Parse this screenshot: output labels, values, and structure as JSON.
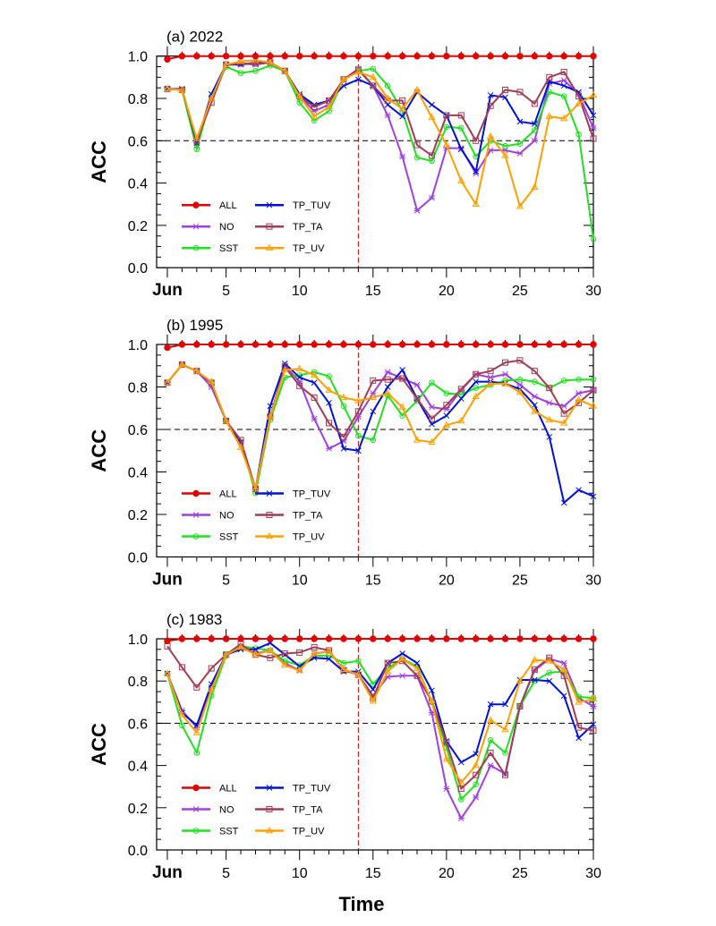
{
  "chart_data": [
    {
      "type": "line",
      "title": "(a) 2022",
      "xlabel": "",
      "ylabel": "ACC",
      "x": [
        1,
        2,
        3,
        4,
        5,
        6,
        7,
        8,
        9,
        10,
        11,
        12,
        13,
        14,
        15,
        16,
        17,
        18,
        19,
        20,
        21,
        22,
        23,
        24,
        25,
        26,
        27,
        28,
        29,
        30
      ],
      "xlim": [
        0.27,
        30
      ],
      "ylim": [
        0,
        1
      ],
      "xticks": [
        1,
        5,
        10,
        15,
        20,
        25,
        30
      ],
      "xtick_labels": [
        "Jun",
        "5",
        "10",
        "15",
        "20",
        "25",
        "30"
      ],
      "yticks": [
        0,
        0.2,
        0.4,
        0.6,
        0.8,
        1.0
      ],
      "ytick_labels": [
        "0.0",
        "0.2",
        "0.4",
        "0.6",
        "0.8",
        "1.0"
      ],
      "reference_hline": 0.6,
      "reference_vline": 14,
      "legend_placement": "bottom-left",
      "series": [
        {
          "name": "ALL",
          "values": [
            0.985,
            1,
            1,
            1,
            1,
            1,
            1,
            1,
            1,
            1,
            1,
            1,
            1,
            1,
            1,
            1,
            1,
            1,
            1,
            1,
            1,
            1,
            1,
            1,
            1,
            1,
            1,
            1,
            1,
            1
          ]
        },
        {
          "name": "NO",
          "values": [
            0.845,
            0.84,
            0.58,
            0.8,
            0.96,
            0.965,
            0.96,
            0.97,
            0.93,
            0.81,
            0.74,
            0.77,
            0.89,
            0.94,
            0.86,
            0.72,
            0.525,
            0.27,
            0.33,
            0.565,
            0.565,
            0.445,
            0.555,
            0.555,
            0.54,
            0.6,
            0.87,
            0.885,
            0.82,
            0.66
          ]
        },
        {
          "name": "SST",
          "values": [
            0.845,
            0.84,
            0.56,
            0.81,
            0.95,
            0.92,
            0.93,
            0.955,
            0.93,
            0.78,
            0.695,
            0.74,
            0.89,
            0.93,
            0.94,
            0.86,
            0.74,
            0.52,
            0.505,
            0.665,
            0.66,
            0.525,
            0.6,
            0.575,
            0.585,
            0.65,
            0.83,
            0.81,
            0.63,
            0.135
          ]
        },
        {
          "name": "TP_TUV",
          "values": [
            0.845,
            0.845,
            0.59,
            0.82,
            0.96,
            0.96,
            0.97,
            0.97,
            0.93,
            0.82,
            0.77,
            0.79,
            0.86,
            0.89,
            0.86,
            0.77,
            0.715,
            0.83,
            0.77,
            0.72,
            0.56,
            0.455,
            0.815,
            0.805,
            0.69,
            0.68,
            0.88,
            0.86,
            0.83,
            0.72
          ]
        },
        {
          "name": "TP_TA",
          "values": [
            0.845,
            0.84,
            0.6,
            0.78,
            0.96,
            0.965,
            0.965,
            0.97,
            0.93,
            0.81,
            0.76,
            0.79,
            0.89,
            0.935,
            0.86,
            0.79,
            0.79,
            0.58,
            0.53,
            0.72,
            0.72,
            0.6,
            0.765,
            0.84,
            0.83,
            0.775,
            0.9,
            0.925,
            0.81,
            0.61
          ]
        },
        {
          "name": "TP_UV",
          "values": [
            0.845,
            0.84,
            0.61,
            0.8,
            0.96,
            0.975,
            0.98,
            0.97,
            0.93,
            0.81,
            0.715,
            0.76,
            0.89,
            0.925,
            0.9,
            0.8,
            0.75,
            0.84,
            0.71,
            0.58,
            0.41,
            0.3,
            0.62,
            0.53,
            0.29,
            0.38,
            0.715,
            0.705,
            0.775,
            0.815
          ]
        }
      ]
    },
    {
      "type": "line",
      "title": "(b) 1995",
      "xlabel": "",
      "ylabel": "ACC",
      "x": [
        1,
        2,
        3,
        4,
        5,
        6,
        7,
        8,
        9,
        10,
        11,
        12,
        13,
        14,
        15,
        16,
        17,
        18,
        19,
        20,
        21,
        22,
        23,
        24,
        25,
        26,
        27,
        28,
        29,
        30
      ],
      "xlim": [
        0.27,
        30
      ],
      "ylim": [
        0,
        1
      ],
      "xticks": [
        1,
        5,
        10,
        15,
        20,
        25,
        30
      ],
      "xtick_labels": [
        "Jun",
        "5",
        "10",
        "15",
        "20",
        "25",
        "30"
      ],
      "yticks": [
        0,
        0.2,
        0.4,
        0.6,
        0.8,
        1.0
      ],
      "ytick_labels": [
        "0.0",
        "0.2",
        "0.4",
        "0.6",
        "0.8",
        "1.0"
      ],
      "reference_hline": 0.6,
      "reference_vline": 14,
      "legend_placement": "bottom-left",
      "series": [
        {
          "name": "ALL",
          "values": [
            0.985,
            1,
            1,
            1,
            1,
            1,
            1,
            1,
            1,
            1,
            1,
            1,
            1,
            1,
            1,
            1,
            1,
            1,
            1,
            1,
            1,
            1,
            1,
            1,
            1,
            1,
            1,
            1,
            1,
            1
          ]
        },
        {
          "name": "NO",
          "values": [
            0.82,
            0.905,
            0.875,
            0.8,
            0.64,
            0.54,
            0.32,
            0.66,
            0.9,
            0.825,
            0.65,
            0.51,
            0.545,
            0.66,
            0.77,
            0.87,
            0.84,
            0.81,
            0.705,
            0.695,
            0.785,
            0.86,
            0.845,
            0.86,
            0.81,
            0.755,
            0.725,
            0.71,
            0.77,
            0.785
          ]
        },
        {
          "name": "SST",
          "values": [
            0.82,
            0.905,
            0.875,
            0.82,
            0.64,
            0.54,
            0.3,
            0.645,
            0.845,
            0.855,
            0.87,
            0.85,
            0.71,
            0.57,
            0.55,
            0.76,
            0.665,
            0.735,
            0.82,
            0.77,
            0.765,
            0.795,
            0.81,
            0.83,
            0.835,
            0.825,
            0.795,
            0.83,
            0.835,
            0.835
          ]
        },
        {
          "name": "TP_TUV",
          "values": [
            0.82,
            0.905,
            0.875,
            0.82,
            0.64,
            0.54,
            0.32,
            0.71,
            0.91,
            0.845,
            0.82,
            0.725,
            0.51,
            0.5,
            0.685,
            0.8,
            0.88,
            0.745,
            0.625,
            0.665,
            0.745,
            0.825,
            0.825,
            0.815,
            0.79,
            0.715,
            0.565,
            0.255,
            0.315,
            0.285
          ]
        },
        {
          "name": "TP_TA",
          "values": [
            0.82,
            0.905,
            0.875,
            0.82,
            0.64,
            0.55,
            0.32,
            0.66,
            0.895,
            0.805,
            0.75,
            0.63,
            0.565,
            0.685,
            0.83,
            0.835,
            0.84,
            0.745,
            0.65,
            0.715,
            0.79,
            0.86,
            0.875,
            0.915,
            0.925,
            0.875,
            0.795,
            0.675,
            0.725,
            0.785
          ]
        },
        {
          "name": "TP_UV",
          "values": [
            0.82,
            0.905,
            0.875,
            0.825,
            0.64,
            0.515,
            0.32,
            0.66,
            0.88,
            0.885,
            0.855,
            0.785,
            0.75,
            0.735,
            0.75,
            0.77,
            0.705,
            0.55,
            0.54,
            0.62,
            0.64,
            0.755,
            0.815,
            0.815,
            0.775,
            0.685,
            0.645,
            0.63,
            0.74,
            0.71
          ]
        }
      ]
    },
    {
      "type": "line",
      "title": "(c) 1983",
      "xlabel": "Time",
      "ylabel": "ACC",
      "x": [
        1,
        2,
        3,
        4,
        5,
        6,
        7,
        8,
        9,
        10,
        11,
        12,
        13,
        14,
        15,
        16,
        17,
        18,
        19,
        20,
        21,
        22,
        23,
        24,
        25,
        26,
        27,
        28,
        29,
        30
      ],
      "xlim": [
        0.27,
        30
      ],
      "ylim": [
        0,
        1
      ],
      "xticks": [
        1,
        5,
        10,
        15,
        20,
        25,
        30
      ],
      "xtick_labels": [
        "Jun",
        "5",
        "10",
        "15",
        "20",
        "25",
        "30"
      ],
      "yticks": [
        0,
        0.2,
        0.4,
        0.6,
        0.8,
        1.0
      ],
      "ytick_labels": [
        "0.0",
        "0.2",
        "0.4",
        "0.6",
        "0.8",
        "1.0"
      ],
      "reference_hline": 0.6,
      "reference_vline": 14,
      "legend_placement": "bottom-left",
      "series": [
        {
          "name": "ALL",
          "values": [
            0.99,
            1,
            1,
            1,
            1,
            1,
            1,
            1,
            1,
            1,
            1,
            1,
            1,
            1,
            1,
            1,
            1,
            1,
            1,
            1,
            1,
            1,
            1,
            1,
            1,
            1,
            1,
            1,
            1,
            1
          ]
        },
        {
          "name": "NO",
          "values": [
            0.835,
            0.66,
            0.58,
            0.77,
            0.925,
            0.955,
            0.93,
            0.945,
            0.885,
            0.85,
            0.93,
            0.94,
            0.855,
            0.83,
            0.73,
            0.82,
            0.825,
            0.825,
            0.65,
            0.29,
            0.15,
            0.25,
            0.4,
            0.36,
            0.68,
            0.85,
            0.905,
            0.885,
            0.72,
            0.68
          ]
        },
        {
          "name": "SST",
          "values": [
            0.835,
            0.59,
            0.46,
            0.73,
            0.92,
            0.965,
            0.955,
            0.945,
            0.895,
            0.875,
            0.92,
            0.92,
            0.885,
            0.895,
            0.785,
            0.86,
            0.905,
            0.87,
            0.7,
            0.485,
            0.24,
            0.31,
            0.52,
            0.46,
            0.68,
            0.8,
            0.84,
            0.845,
            0.725,
            0.72
          ]
        },
        {
          "name": "TP_TUV",
          "values": [
            0.835,
            0.65,
            0.59,
            0.785,
            0.925,
            0.95,
            0.95,
            0.98,
            0.925,
            0.87,
            0.91,
            0.905,
            0.845,
            0.845,
            0.76,
            0.885,
            0.93,
            0.885,
            0.755,
            0.515,
            0.415,
            0.455,
            0.69,
            0.69,
            0.805,
            0.805,
            0.8,
            0.73,
            0.53,
            0.595
          ]
        },
        {
          "name": "TP_TA",
          "values": [
            0.965,
            0.865,
            0.77,
            0.86,
            0.925,
            0.975,
            0.925,
            0.91,
            0.93,
            0.935,
            0.96,
            0.945,
            0.85,
            0.83,
            0.72,
            0.885,
            0.895,
            0.825,
            0.705,
            0.51,
            0.29,
            0.355,
            0.46,
            0.355,
            0.68,
            0.855,
            0.91,
            0.825,
            0.58,
            0.565
          ]
        },
        {
          "name": "TP_UV",
          "values": [
            0.835,
            0.64,
            0.555,
            0.76,
            0.925,
            0.96,
            0.925,
            0.945,
            0.875,
            0.85,
            0.93,
            0.94,
            0.855,
            0.83,
            0.705,
            0.845,
            0.905,
            0.86,
            0.705,
            0.43,
            0.32,
            0.4,
            0.615,
            0.57,
            0.8,
            0.9,
            0.895,
            0.855,
            0.7,
            0.715
          ]
        }
      ]
    }
  ],
  "series_styles": {
    "ALL": {
      "color": "#e00000",
      "marker": "filled-circle"
    },
    "NO": {
      "color": "#a040e0",
      "marker": "asterisk"
    },
    "SST": {
      "color": "#22e022",
      "marker": "open-circle"
    },
    "TP_TUV": {
      "color": "#0010d8",
      "marker": "cross"
    },
    "TP_TA": {
      "color": "#a03c55",
      "marker": "open-square"
    },
    "TP_UV": {
      "color": "#ffa000",
      "marker": "open-triangle"
    }
  },
  "legend_order": [
    "ALL",
    "TP_TUV",
    "NO",
    "TP_TA",
    "SST",
    "TP_UV"
  ]
}
